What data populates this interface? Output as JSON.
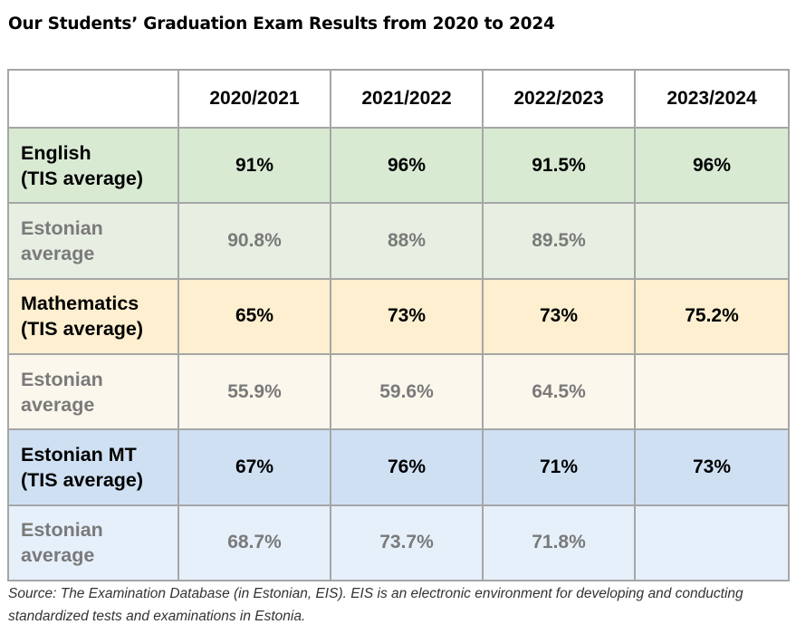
{
  "title": "Our Students’ Graduation Exam Results from 2020 to 2024",
  "source_note": "Source: The Examination Database (in Estonian, EIS). EIS is an electronic environment for developing and conducting standardized tests and examinations in Estonia.",
  "chart_data": {
    "type": "table",
    "title": "Our Students’ Graduation Exam Results from 2020 to 2024",
    "columns": [
      "2020/2021",
      "2021/2022",
      "2022/2023",
      "2023/2024"
    ],
    "rows": [
      {
        "label_line1": "English",
        "label_line2": "(TIS average)",
        "values": [
          "91%",
          "96%",
          "91.5%",
          "96%"
        ],
        "color": "#d9ead3"
      },
      {
        "label_line1": "Estonian",
        "label_line2": "average",
        "values": [
          "90.8%",
          "88%",
          "89.5%",
          ""
        ],
        "color": "#e6efe2"
      },
      {
        "label_line1": "Mathematics",
        "label_line2": "(TIS average)",
        "values": [
          "65%",
          "73%",
          "73%",
          "75.2%"
        ],
        "color": "#fdefcf"
      },
      {
        "label_line1": "Estonian",
        "label_line2": "average",
        "values": [
          "55.9%",
          "59.6%",
          "64.5%",
          ""
        ],
        "color": "#fcf7ec"
      },
      {
        "label_line1": "Estonian MT",
        "label_line2": "(TIS average)",
        "values": [
          "67%",
          "76%",
          "71%",
          "73%"
        ],
        "color": "#cfe0f3"
      },
      {
        "label_line1": "Estonian",
        "label_line2": "average",
        "values": [
          "68.7%",
          "73.7%",
          "71.8%",
          ""
        ],
        "color": "#e6f0fb"
      }
    ],
    "header_color": "#ffffff",
    "muted_text_color": "#7a7a7a",
    "border_color": "#a6a6a6"
  }
}
